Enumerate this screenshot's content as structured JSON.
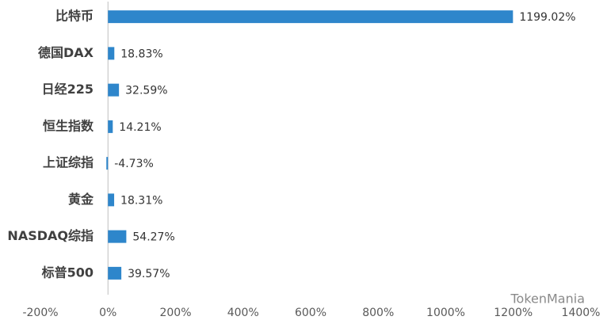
{
  "chart_data": {
    "type": "bar",
    "orientation": "horizontal",
    "categories": [
      "比特币",
      "德国DAX",
      "日经225",
      "恒生指数",
      "上证综指",
      "黄金",
      "NASDAQ综指",
      "标普500"
    ],
    "values": [
      1199.02,
      18.83,
      32.59,
      14.21,
      -4.73,
      18.31,
      54.27,
      39.57
    ],
    "value_labels": [
      "1199.02%",
      "18.83%",
      "32.59%",
      "14.21%",
      "-4.73%",
      "18.31%",
      "54.27%",
      "39.57%"
    ],
    "color": "#2e86cb",
    "xlim": [
      -200,
      1400
    ],
    "xticks": [
      {
        "value": -200,
        "label": "-200%"
      },
      {
        "value": 0,
        "label": "0%"
      },
      {
        "value": 200,
        "label": "200%"
      },
      {
        "value": 400,
        "label": "400%"
      },
      {
        "value": 600,
        "label": "600%"
      },
      {
        "value": 800,
        "label": "800%"
      },
      {
        "value": 1000,
        "label": "1000%"
      },
      {
        "value": 1200,
        "label": "1200%"
      },
      {
        "value": 1400,
        "label": "1400%"
      }
    ],
    "grid": false,
    "watermark": "TokenMania"
  }
}
